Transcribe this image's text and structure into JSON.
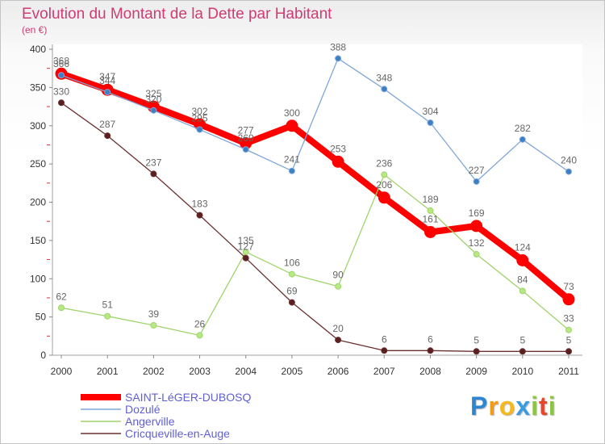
{
  "chart_data": {
    "type": "line",
    "title": "Evolution du Montant de la Dette par Habitant",
    "subtitle": "(en €)",
    "categories": [
      "2000",
      "2001",
      "2002",
      "2003",
      "2004",
      "2005",
      "2006",
      "2007",
      "2008",
      "2009",
      "2010",
      "2011"
    ],
    "ylim": [
      0,
      400
    ],
    "yticks": [
      0,
      50,
      100,
      150,
      200,
      250,
      300,
      350,
      400
    ],
    "grid": false,
    "legend": "bottom-left",
    "series": [
      {
        "name": "SAINT-LéGER-DUBOSQ",
        "color": "#ff0000",
        "point_color": "#ff0000",
        "values": [
          368,
          347,
          325,
          302,
          277,
          300,
          253,
          206,
          161,
          169,
          124,
          73
        ]
      },
      {
        "name": "Dozulé",
        "color": "#7ea7d8",
        "point_color": "#3c7fc2",
        "values": [
          366,
          344,
          320,
          295,
          269,
          241,
          388,
          348,
          304,
          227,
          282,
          240
        ]
      },
      {
        "name": "Angerville",
        "color": "#9fd46c",
        "point_color": "#b8e882",
        "values": [
          62,
          51,
          39,
          26,
          135,
          106,
          90,
          236,
          189,
          132,
          84,
          33
        ]
      },
      {
        "name": "Cricqueville-en-Auge",
        "color": "#6b3030",
        "point_color": "#5a1f1f",
        "values": [
          330,
          287,
          237,
          183,
          127,
          69,
          20,
          6,
          6,
          5,
          5,
          5
        ]
      }
    ]
  },
  "style": {
    "title_color": "#cf3b74",
    "legend_text_color": "#5f5fd6",
    "label_color": "#666666",
    "tick_label_color": "#333333"
  },
  "logo": {
    "text": "Proxiti",
    "colors": [
      "#2e86d1",
      "#f39c12",
      "#f5b81d",
      "#3a9be0",
      "#8cc63e",
      "#e8452c",
      "#8cc63e"
    ]
  }
}
